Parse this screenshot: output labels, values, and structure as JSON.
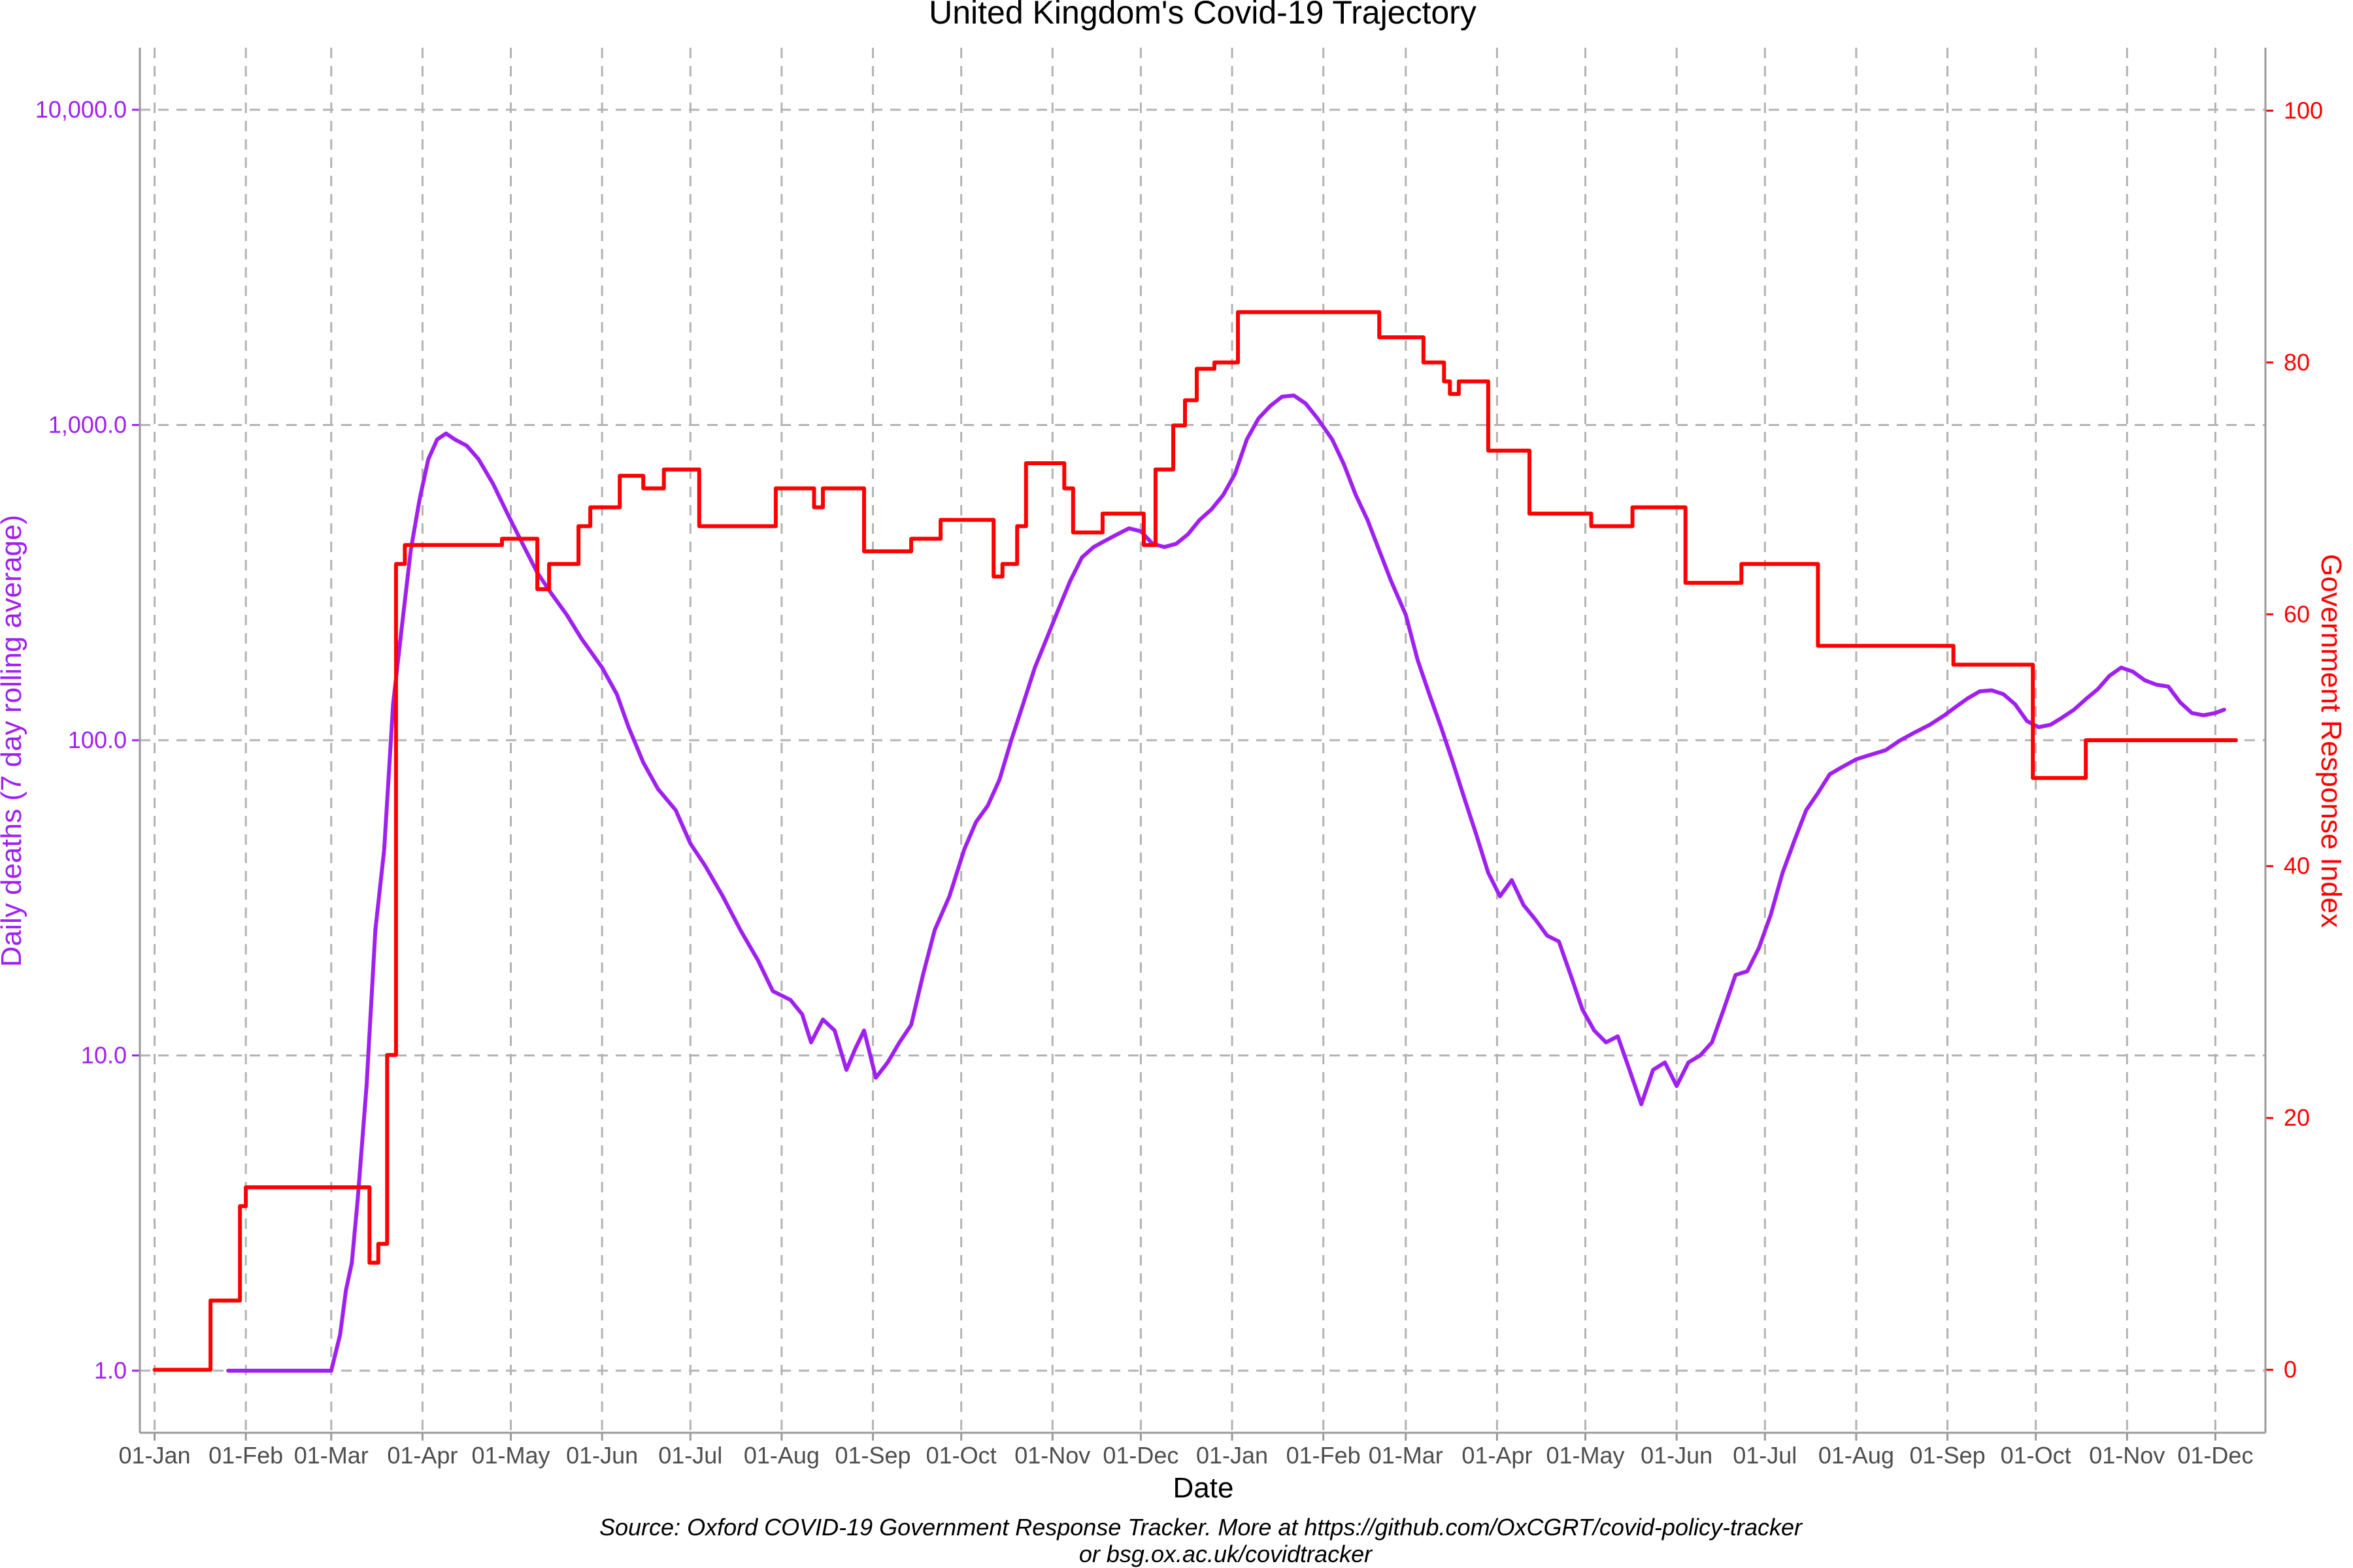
{
  "chart_data": {
    "type": "line",
    "title": "United Kingdom's Covid-19 Trajectory",
    "xlabel": "Date",
    "ylabel_left": "Daily deaths (7 day rolling average)",
    "ylabel_right": "Government Response Index",
    "y_left_scale": "log10",
    "y_left_ticks": [
      "1.0",
      "10.0",
      "100.0",
      "1,000.0",
      "10,000.0"
    ],
    "y_right_ticks": [
      "0",
      "20",
      "40",
      "60",
      "80",
      "100"
    ],
    "y_right_range": [
      -5,
      105
    ],
    "x_ticks": [
      "01-Jan",
      "01-Feb",
      "01-Mar",
      "01-Apr",
      "01-May",
      "01-Jun",
      "01-Jul",
      "01-Aug",
      "01-Sep",
      "01-Oct",
      "01-Nov",
      "01-Dec",
      "01-Jan",
      "01-Feb",
      "01-Mar",
      "01-Apr",
      "01-May",
      "01-Jun",
      "01-Jul",
      "01-Aug",
      "01-Sep",
      "01-Oct",
      "01-Nov",
      "01-Dec"
    ],
    "x_tick_dates": [
      "2020-01-01",
      "2020-02-01",
      "2020-03-01",
      "2020-04-01",
      "2020-05-01",
      "2020-06-01",
      "2020-07-01",
      "2020-08-01",
      "2020-09-01",
      "2020-10-01",
      "2020-11-01",
      "2020-12-01",
      "2021-01-01",
      "2021-02-01",
      "2021-03-01",
      "2021-04-01",
      "2021-05-01",
      "2021-06-01",
      "2021-07-01",
      "2021-08-01",
      "2021-09-01",
      "2021-10-01",
      "2021-11-01",
      "2021-12-01"
    ],
    "x_range": [
      "2019-12-27",
      "2021-12-18"
    ],
    "grid": true,
    "caption_lines": [
      "Source: Oxford COVID-19 Government Response Tracker. More at https://github.com/OxCGRT/covid-policy-tracker",
      "or bsg.ox.ac.uk/covidtracker"
    ],
    "series": [
      {
        "color": "#a020f0",
        "axis": "left",
        "points": [
          [
            "2020-01-26",
            1
          ],
          [
            "2020-03-01",
            1
          ],
          [
            "2020-03-04",
            1.3
          ],
          [
            "2020-03-06",
            1.8
          ],
          [
            "2020-03-08",
            2.2
          ],
          [
            "2020-03-10",
            3.5
          ],
          [
            "2020-03-13",
            8
          ],
          [
            "2020-03-16",
            25
          ],
          [
            "2020-03-19",
            45
          ],
          [
            "2020-03-22",
            130
          ],
          [
            "2020-03-25",
            230
          ],
          [
            "2020-03-28",
            400
          ],
          [
            "2020-03-31",
            580
          ],
          [
            "2020-04-03",
            780
          ],
          [
            "2020-04-06",
            900
          ],
          [
            "2020-04-09",
            940
          ],
          [
            "2020-04-12",
            900
          ],
          [
            "2020-04-16",
            860
          ],
          [
            "2020-04-20",
            780
          ],
          [
            "2020-04-25",
            650
          ],
          [
            "2020-04-30",
            520
          ],
          [
            "2020-05-05",
            420
          ],
          [
            "2020-05-10",
            340
          ],
          [
            "2020-05-15",
            290
          ],
          [
            "2020-05-20",
            250
          ],
          [
            "2020-05-25",
            210
          ],
          [
            "2020-06-01",
            170
          ],
          [
            "2020-06-06",
            140
          ],
          [
            "2020-06-10",
            110
          ],
          [
            "2020-06-15",
            85
          ],
          [
            "2020-06-20",
            70
          ],
          [
            "2020-06-26",
            60
          ],
          [
            "2020-07-01",
            47
          ],
          [
            "2020-07-06",
            40
          ],
          [
            "2020-07-12",
            32
          ],
          [
            "2020-07-18",
            25
          ],
          [
            "2020-07-24",
            20
          ],
          [
            "2020-07-29",
            16
          ],
          [
            "2020-08-04",
            15
          ],
          [
            "2020-08-08",
            13.5
          ],
          [
            "2020-08-11",
            11
          ],
          [
            "2020-08-15",
            13
          ],
          [
            "2020-08-19",
            12
          ],
          [
            "2020-08-23",
            9
          ],
          [
            "2020-08-26",
            10.5
          ],
          [
            "2020-08-29",
            12
          ],
          [
            "2020-09-02",
            8.5
          ],
          [
            "2020-09-06",
            9.5
          ],
          [
            "2020-09-10",
            11
          ],
          [
            "2020-09-14",
            12.5
          ],
          [
            "2020-09-18",
            18
          ],
          [
            "2020-09-22",
            25
          ],
          [
            "2020-09-27",
            32
          ],
          [
            "2020-10-02",
            45
          ],
          [
            "2020-10-06",
            55
          ],
          [
            "2020-10-10",
            62
          ],
          [
            "2020-10-14",
            75
          ],
          [
            "2020-10-18",
            100
          ],
          [
            "2020-10-22",
            130
          ],
          [
            "2020-10-26",
            170
          ],
          [
            "2020-10-30",
            210
          ],
          [
            "2020-11-03",
            260
          ],
          [
            "2020-11-07",
            320
          ],
          [
            "2020-11-11",
            380
          ],
          [
            "2020-11-15",
            410
          ],
          [
            "2020-11-19",
            430
          ],
          [
            "2020-11-23",
            450
          ],
          [
            "2020-11-27",
            470
          ],
          [
            "2020-12-01",
            460
          ],
          [
            "2020-12-05",
            420
          ],
          [
            "2020-12-09",
            410
          ],
          [
            "2020-12-13",
            420
          ],
          [
            "2020-12-17",
            450
          ],
          [
            "2020-12-21",
            500
          ],
          [
            "2020-12-25",
            540
          ],
          [
            "2020-12-29",
            600
          ],
          [
            "2021-01-02",
            700
          ],
          [
            "2021-01-06",
            900
          ],
          [
            "2021-01-10",
            1050
          ],
          [
            "2021-01-14",
            1150
          ],
          [
            "2021-01-18",
            1230
          ],
          [
            "2021-01-22",
            1240
          ],
          [
            "2021-01-26",
            1170
          ],
          [
            "2021-01-30",
            1050
          ],
          [
            "2021-02-04",
            900
          ],
          [
            "2021-02-08",
            750
          ],
          [
            "2021-02-12",
            600
          ],
          [
            "2021-02-16",
            500
          ],
          [
            "2021-02-20",
            400
          ],
          [
            "2021-02-24",
            320
          ],
          [
            "2021-03-01",
            250
          ],
          [
            "2021-03-05",
            180
          ],
          [
            "2021-03-09",
            140
          ],
          [
            "2021-03-13",
            110
          ],
          [
            "2021-03-17",
            85
          ],
          [
            "2021-03-21",
            65
          ],
          [
            "2021-03-25",
            50
          ],
          [
            "2021-03-29",
            38
          ],
          [
            "2021-04-02",
            32
          ],
          [
            "2021-04-06",
            36
          ],
          [
            "2021-04-10",
            30
          ],
          [
            "2021-04-14",
            27
          ],
          [
            "2021-04-18",
            24
          ],
          [
            "2021-04-22",
            23
          ],
          [
            "2021-04-26",
            18
          ],
          [
            "2021-04-30",
            14
          ],
          [
            "2021-05-04",
            12
          ],
          [
            "2021-05-08",
            11
          ],
          [
            "2021-05-12",
            11.5
          ],
          [
            "2021-05-16",
            9
          ],
          [
            "2021-05-20",
            7
          ],
          [
            "2021-05-24",
            9
          ],
          [
            "2021-05-28",
            9.5
          ],
          [
            "2021-06-01",
            8
          ],
          [
            "2021-06-05",
            9.5
          ],
          [
            "2021-06-09",
            10
          ],
          [
            "2021-06-13",
            11
          ],
          [
            "2021-06-17",
            14
          ],
          [
            "2021-06-21",
            18
          ],
          [
            "2021-06-25",
            18.5
          ],
          [
            "2021-06-29",
            22
          ],
          [
            "2021-07-03",
            28
          ],
          [
            "2021-07-07",
            38
          ],
          [
            "2021-07-11",
            48
          ],
          [
            "2021-07-15",
            60
          ],
          [
            "2021-07-19",
            68
          ],
          [
            "2021-07-23",
            78
          ],
          [
            "2021-07-27",
            82
          ],
          [
            "2021-08-01",
            87
          ],
          [
            "2021-08-06",
            90
          ],
          [
            "2021-08-11",
            93
          ],
          [
            "2021-08-16",
            100
          ],
          [
            "2021-08-21",
            106
          ],
          [
            "2021-08-26",
            112
          ],
          [
            "2021-08-31",
            120
          ],
          [
            "2021-09-04",
            128
          ],
          [
            "2021-09-08",
            136
          ],
          [
            "2021-09-12",
            143
          ],
          [
            "2021-09-16",
            144
          ],
          [
            "2021-09-20",
            140
          ],
          [
            "2021-09-24",
            130
          ],
          [
            "2021-09-28",
            115
          ],
          [
            "2021-10-02",
            110
          ],
          [
            "2021-10-06",
            112
          ],
          [
            "2021-10-10",
            118
          ],
          [
            "2021-10-14",
            125
          ],
          [
            "2021-10-18",
            135
          ],
          [
            "2021-10-22",
            145
          ],
          [
            "2021-10-26",
            160
          ],
          [
            "2021-10-30",
            170
          ],
          [
            "2021-11-03",
            165
          ],
          [
            "2021-11-07",
            155
          ],
          [
            "2021-11-11",
            150
          ],
          [
            "2021-11-15",
            148
          ],
          [
            "2021-11-19",
            132
          ],
          [
            "2021-11-23",
            122
          ],
          [
            "2021-11-27",
            120
          ],
          [
            "2021-12-01",
            122
          ],
          [
            "2021-12-04",
            125
          ]
        ]
      },
      {
        "color": "#ff0000",
        "axis": "right",
        "step": true,
        "points": [
          [
            "2020-01-01",
            0
          ],
          [
            "2020-01-20",
            5.5
          ],
          [
            "2020-01-30",
            13
          ],
          [
            "2020-02-01",
            14.5
          ],
          [
            "2020-03-12",
            14.5
          ],
          [
            "2020-03-14",
            8.5
          ],
          [
            "2020-03-17",
            10
          ],
          [
            "2020-03-20",
            25
          ],
          [
            "2020-03-23",
            64
          ],
          [
            "2020-03-26",
            65.5
          ],
          [
            "2020-04-28",
            66
          ],
          [
            "2020-05-10",
            62
          ],
          [
            "2020-05-14",
            64
          ],
          [
            "2020-05-24",
            67
          ],
          [
            "2020-05-28",
            68.5
          ],
          [
            "2020-06-07",
            71
          ],
          [
            "2020-06-15",
            70
          ],
          [
            "2020-06-22",
            71.5
          ],
          [
            "2020-07-04",
            67
          ],
          [
            "2020-07-30",
            70
          ],
          [
            "2020-08-12",
            68.5
          ],
          [
            "2020-08-15",
            70
          ],
          [
            "2020-08-29",
            65
          ],
          [
            "2020-09-14",
            66
          ],
          [
            "2020-09-24",
            67.5
          ],
          [
            "2020-10-12",
            63
          ],
          [
            "2020-10-15",
            64
          ],
          [
            "2020-10-20",
            67
          ],
          [
            "2020-10-23",
            72
          ],
          [
            "2020-11-05",
            70
          ],
          [
            "2020-11-08",
            66.5
          ],
          [
            "2020-11-18",
            68
          ],
          [
            "2020-12-02",
            65.5
          ],
          [
            "2020-12-06",
            71.5
          ],
          [
            "2020-12-12",
            75
          ],
          [
            "2020-12-16",
            77
          ],
          [
            "2020-12-20",
            79.5
          ],
          [
            "2020-12-26",
            80
          ],
          [
            "2021-01-03",
            84
          ],
          [
            "2021-02-20",
            82
          ],
          [
            "2021-03-07",
            80
          ],
          [
            "2021-03-14",
            78.5
          ],
          [
            "2021-03-16",
            77.5
          ],
          [
            "2021-03-19",
            78.5
          ],
          [
            "2021-03-29",
            73
          ],
          [
            "2021-04-12",
            68
          ],
          [
            "2021-05-03",
            67
          ],
          [
            "2021-05-17",
            68.5
          ],
          [
            "2021-06-04",
            62.5
          ],
          [
            "2021-06-23",
            64
          ],
          [
            "2021-07-19",
            57.5
          ],
          [
            "2021-09-03",
            56
          ],
          [
            "2021-09-30",
            47
          ],
          [
            "2021-10-18",
            50
          ],
          [
            "2021-12-08",
            50
          ]
        ]
      }
    ]
  }
}
